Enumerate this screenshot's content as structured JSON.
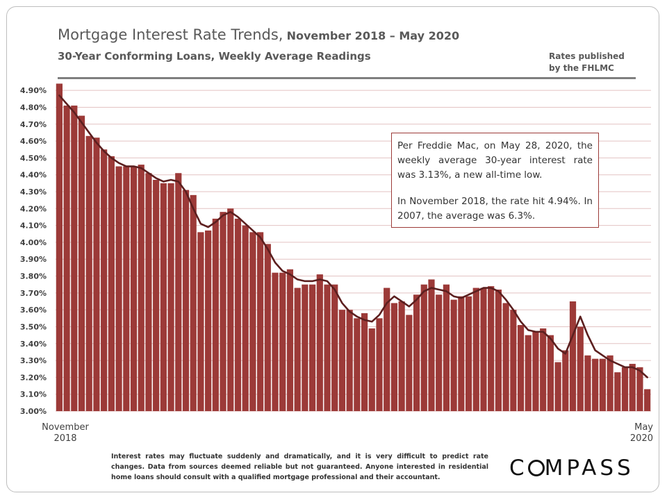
{
  "title": {
    "main": "Mortgage Interest Rate Trends,",
    "range": "November 2018 – May 2020"
  },
  "subtitle": "30-Year Conforming Loans, Weekly Average Readings",
  "source": [
    "Rates published",
    "by the FHLMC"
  ],
  "annotation": [
    "Per Freddie Mac, on May 28, 2020, the weekly average 30-year interest rate was 3.13%, a new all-time low.",
    "In November 2018, the rate hit 4.94%. In 2007, the average was 6.3%."
  ],
  "x_labels": {
    "start": [
      "November",
      "2018"
    ],
    "end": [
      "May",
      "2020"
    ]
  },
  "disclaimer": "Interest rates may fluctuate suddenly and dramatically, and it is very difficult to predict rate changes. Data from sources deemed reliable but not guaranteed. Anyone interested in residential home loans should consult with a qualified mortgage professional and their accountant.",
  "logo": {
    "before": "C",
    "after": "MPASS"
  },
  "colors": {
    "bar": "#9c3a38",
    "line": "#5c1f1f",
    "grid": "#e3c2c2",
    "axis_text": "#404040"
  },
  "chart_data": {
    "type": "bar",
    "ylim": [
      3.0,
      4.95
    ],
    "yticks": [
      "3.00%",
      "3.10%",
      "3.20%",
      "3.30%",
      "3.40%",
      "3.50%",
      "3.60%",
      "3.70%",
      "3.80%",
      "3.90%",
      "4.00%",
      "4.10%",
      "4.20%",
      "4.30%",
      "4.40%",
      "4.50%",
      "4.60%",
      "4.70%",
      "4.80%",
      "4.90%"
    ],
    "grid": true,
    "values": [
      4.94,
      4.81,
      4.81,
      4.75,
      4.63,
      4.62,
      4.55,
      4.51,
      4.45,
      4.45,
      4.45,
      4.46,
      4.41,
      4.37,
      4.35,
      4.35,
      4.41,
      4.31,
      4.28,
      4.06,
      4.07,
      4.14,
      4.18,
      4.2,
      4.14,
      4.1,
      4.06,
      4.06,
      3.99,
      3.82,
      3.82,
      3.84,
      3.73,
      3.75,
      3.75,
      3.81,
      3.75,
      3.75,
      3.6,
      3.6,
      3.55,
      3.58,
      3.49,
      3.55,
      3.73,
      3.64,
      3.65,
      3.57,
      3.69,
      3.75,
      3.78,
      3.69,
      3.75,
      3.66,
      3.68,
      3.68,
      3.73,
      3.73,
      3.74,
      3.72,
      3.64,
      3.6,
      3.51,
      3.45,
      3.47,
      3.49,
      3.45,
      3.29,
      3.36,
      3.65,
      3.5,
      3.33,
      3.31,
      3.31,
      3.33,
      3.23,
      3.26,
      3.28,
      3.26,
      3.13
    ],
    "moving_average": [
      4.87,
      4.82,
      4.77,
      4.71,
      4.65,
      4.59,
      4.54,
      4.5,
      4.47,
      4.45,
      4.45,
      4.44,
      4.41,
      4.38,
      4.36,
      4.37,
      4.36,
      4.3,
      4.2,
      4.11,
      4.09,
      4.12,
      4.16,
      4.18,
      4.15,
      4.11,
      4.07,
      4.03,
      3.96,
      3.88,
      3.83,
      3.81,
      3.78,
      3.77,
      3.77,
      3.78,
      3.77,
      3.72,
      3.64,
      3.59,
      3.56,
      3.54,
      3.53,
      3.57,
      3.64,
      3.68,
      3.65,
      3.62,
      3.66,
      3.71,
      3.73,
      3.72,
      3.71,
      3.68,
      3.67,
      3.69,
      3.71,
      3.73,
      3.73,
      3.71,
      3.66,
      3.6,
      3.53,
      3.48,
      3.47,
      3.47,
      3.43,
      3.37,
      3.34,
      3.45,
      3.56,
      3.45,
      3.36,
      3.33,
      3.3,
      3.28,
      3.26,
      3.26,
      3.24,
      3.2
    ]
  }
}
